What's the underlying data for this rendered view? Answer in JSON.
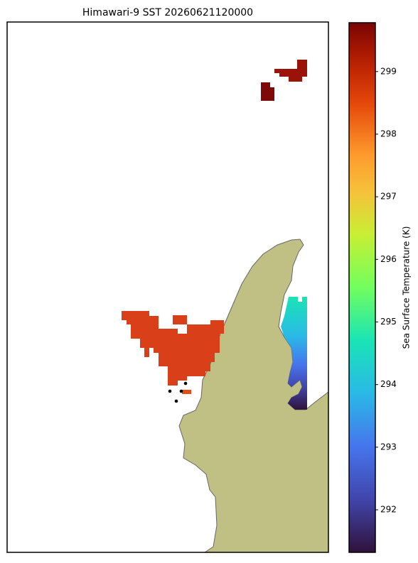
{
  "title": "Himawari-9 SST 20260621120000",
  "colorbar": {
    "label": "Sea Surface Temperature (K)",
    "lim": [
      291.32,
      299.78
    ],
    "ticks": [
      292,
      293,
      294,
      295,
      296,
      297,
      298,
      299
    ]
  }
}
